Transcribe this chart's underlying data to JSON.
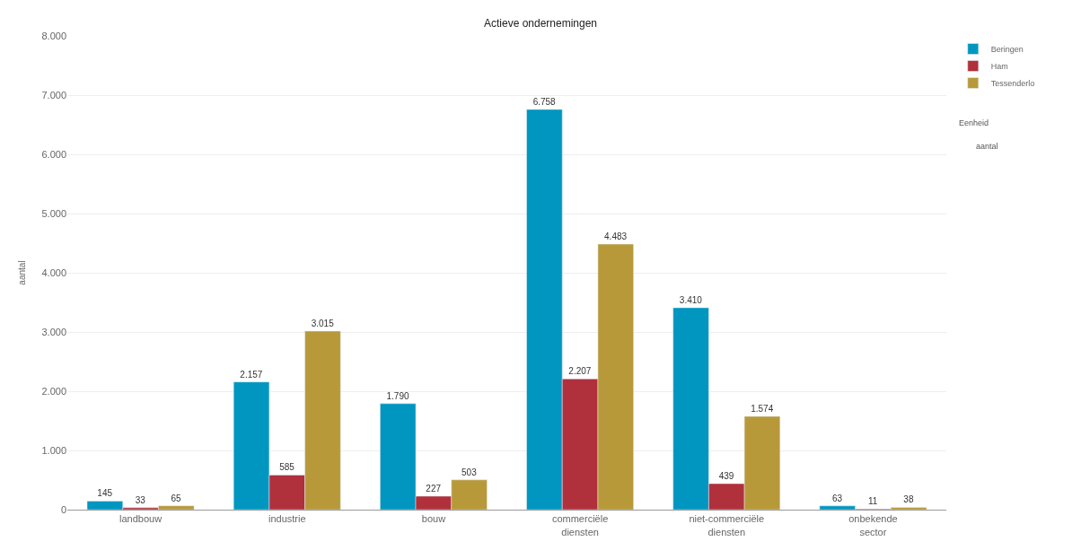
{
  "chart_data": {
    "type": "bar",
    "title": "Actieve ondernemingen",
    "ylabel": "aantal",
    "categories": [
      "landbouw",
      "industrie",
      "bouw",
      "commerciële\ndiensten",
      "niet-commerciële\ndiensten",
      "onbekende\nsector"
    ],
    "series": [
      {
        "name": "Beringen",
        "color": "#0096c0",
        "values": [
          145,
          2157,
          1790,
          6758,
          3410,
          63
        ],
        "value_labels": [
          "145",
          "2.157",
          "1.790",
          "6.758",
          "3.410",
          "63"
        ]
      },
      {
        "name": "Ham",
        "color": "#b0303c",
        "values": [
          33,
          585,
          227,
          2207,
          439,
          11
        ],
        "value_labels": [
          "33",
          "585",
          "227",
          "2.207",
          "439",
          "11"
        ]
      },
      {
        "name": "Tessenderlo",
        "color": "#b8993a",
        "values": [
          65,
          3015,
          503,
          4483,
          1574,
          38
        ],
        "value_labels": [
          "65",
          "3.015",
          "503",
          "4.483",
          "1.574",
          "38"
        ]
      }
    ],
    "ylim": [
      0,
      8000
    ],
    "yticks": [
      0,
      {
        "value": 1000,
        "label": "1.000"
      },
      {
        "value": 2000,
        "label": "2.000"
      },
      {
        "value": 3000,
        "label": "3.000"
      },
      {
        "value": 4000,
        "label": "4.000"
      },
      {
        "value": 5000,
        "label": "5.000"
      },
      {
        "value": 6000,
        "label": "6.000"
      },
      {
        "value": 7000,
        "label": "7.000"
      },
      {
        "value": 8000,
        "label": "8.000"
      }
    ],
    "annotations": [
      "Eenheid",
      "aantal"
    ],
    "grid": "y",
    "legend": "top right"
  }
}
